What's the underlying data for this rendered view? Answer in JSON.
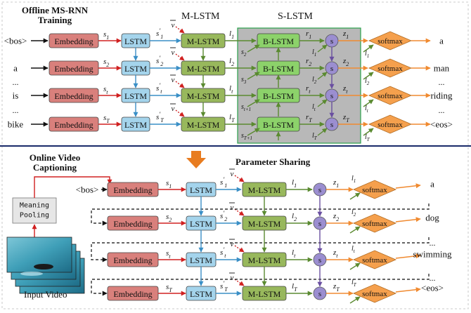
{
  "offline": {
    "title_line1": "Offline MS-RNN",
    "title_line2": "Training",
    "m_lstm_header": "M-LSTM",
    "s_lstm_header": "S-LSTM",
    "inputs": [
      "<bos>",
      "a",
      "is",
      "bike"
    ],
    "input_dots": [
      "...",
      "..."
    ],
    "outputs": [
      "a",
      "man",
      "riding",
      "<eos>"
    ],
    "output_dots": [
      "...",
      "..."
    ],
    "embedding_label": "Embedding",
    "lstm_label": "LSTM",
    "m_lstm_label": "M-LSTM",
    "b_lstm_label": "B-LSTM",
    "s_label": "s",
    "softmax_label": "softmax",
    "v_label": "v",
    "s_vars": [
      "s1",
      "s2",
      "st",
      "sT"
    ],
    "sp_vars": [
      "s1'",
      "s2'",
      "st'",
      "sT'"
    ],
    "l_vars": [
      "l1",
      "l2",
      "lt",
      "lT"
    ],
    "r_vars": [
      "r1",
      "r2",
      "rt",
      "rT"
    ],
    "z_vars": [
      "z1",
      "z2",
      "zt",
      "zT"
    ],
    "sb_vars": [
      "s2",
      "s3",
      "st+1",
      "sT+1"
    ],
    "lb_vars": [
      "l1",
      "l2",
      "lt",
      "lT"
    ],
    "out_l_vars": [
      "l1",
      "l2",
      "lt",
      "lT"
    ]
  },
  "online": {
    "title_line1": "Online Video",
    "title_line2": "Captioning",
    "param_sharing": "Parameter Sharing",
    "pooling_line1": "Meaning",
    "pooling_line2": "Pooling",
    "input_video_label": "Input Video",
    "bos": "<bos>",
    "outputs": [
      "a",
      "dog",
      "swimming",
      "<eos>"
    ],
    "output_dots": [
      "...",
      "..."
    ],
    "s_vars": [
      "s1",
      "s2",
      "st",
      "sT"
    ],
    "sp_vars": [
      "s1'",
      "s2'",
      "st'",
      "sT'"
    ],
    "l_vars": [
      "l1",
      "l2",
      "lt",
      "lT"
    ],
    "z_vars": [
      "z1",
      "z2",
      "zt",
      "zT"
    ],
    "out_l_vars": [
      "l1",
      "l2",
      "lt",
      "lT"
    ]
  },
  "colors": {
    "embedding": "#d9807c",
    "lstm": "#a4d4ec",
    "m_lstm": "#98b85c",
    "b_lstm": "#8cd26a",
    "s_node": "#9b8ed0",
    "softmax": "#f5a04d",
    "s_lstm_bg": "#b8b8b8",
    "arrow_red": "#d02020",
    "arrow_blue": "#3a8fc6",
    "arrow_green": "#5a8a30",
    "arrow_orange": "#f08a30",
    "arrow_purple": "#6a4fa0",
    "param_arrow": "#e87c20"
  }
}
